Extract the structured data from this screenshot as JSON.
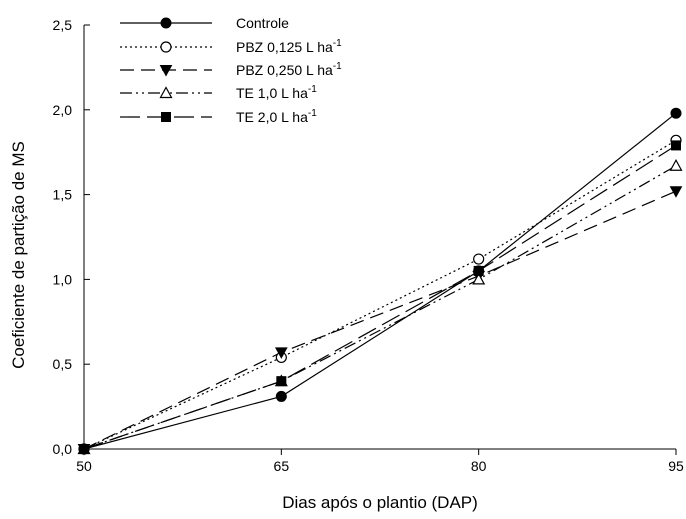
{
  "chart_data": {
    "type": "line",
    "title": "",
    "xlabel": "Dias após o plantio (DAP)",
    "ylabel": "Coeficiente de partição de MS",
    "x": [
      50,
      65,
      80,
      95
    ],
    "x_ticks": [
      "50",
      "65",
      "80",
      "95"
    ],
    "xlim": [
      50,
      95
    ],
    "ylim": [
      0,
      2.5
    ],
    "y_ticks": [
      {
        "value": 0.0,
        "label": "0,0"
      },
      {
        "value": 0.5,
        "label": "0,5"
      },
      {
        "value": 1.0,
        "label": "1,0"
      },
      {
        "value": 1.5,
        "label": "1,5"
      },
      {
        "value": 2.0,
        "label": "2,0"
      },
      {
        "value": 2.5,
        "label": "2,5"
      }
    ],
    "grid": false,
    "legend_position": "top-left",
    "series": [
      {
        "name": "Controle",
        "unit": "",
        "values": [
          0.0,
          0.31,
          1.05,
          1.98
        ],
        "marker": "circle-filled",
        "dash": "none",
        "color": "#000000"
      },
      {
        "name": "PBZ 0,125 L ha",
        "unit": "-1",
        "values": [
          0.0,
          0.54,
          1.12,
          1.82
        ],
        "marker": "circle-open",
        "dash": "dotted",
        "color": "#000000"
      },
      {
        "name": "PBZ 0,250 L ha",
        "unit": "-1",
        "values": [
          0.0,
          0.57,
          1.02,
          1.52
        ],
        "marker": "triangle-down-filled",
        "dash": "long-dash",
        "color": "#000000"
      },
      {
        "name": "TE  1,0 L ha",
        "unit": "-1",
        "values": [
          0.0,
          0.4,
          1.0,
          1.67
        ],
        "marker": "triangle-up-open",
        "dash": "dash-dot-dot",
        "color": "#000000"
      },
      {
        "name": "TE  2,0 L ha",
        "unit": "-1",
        "values": [
          0.0,
          0.4,
          1.05,
          1.79
        ],
        "marker": "square-filled",
        "dash": "very-long-dash",
        "color": "#000000"
      }
    ]
  }
}
